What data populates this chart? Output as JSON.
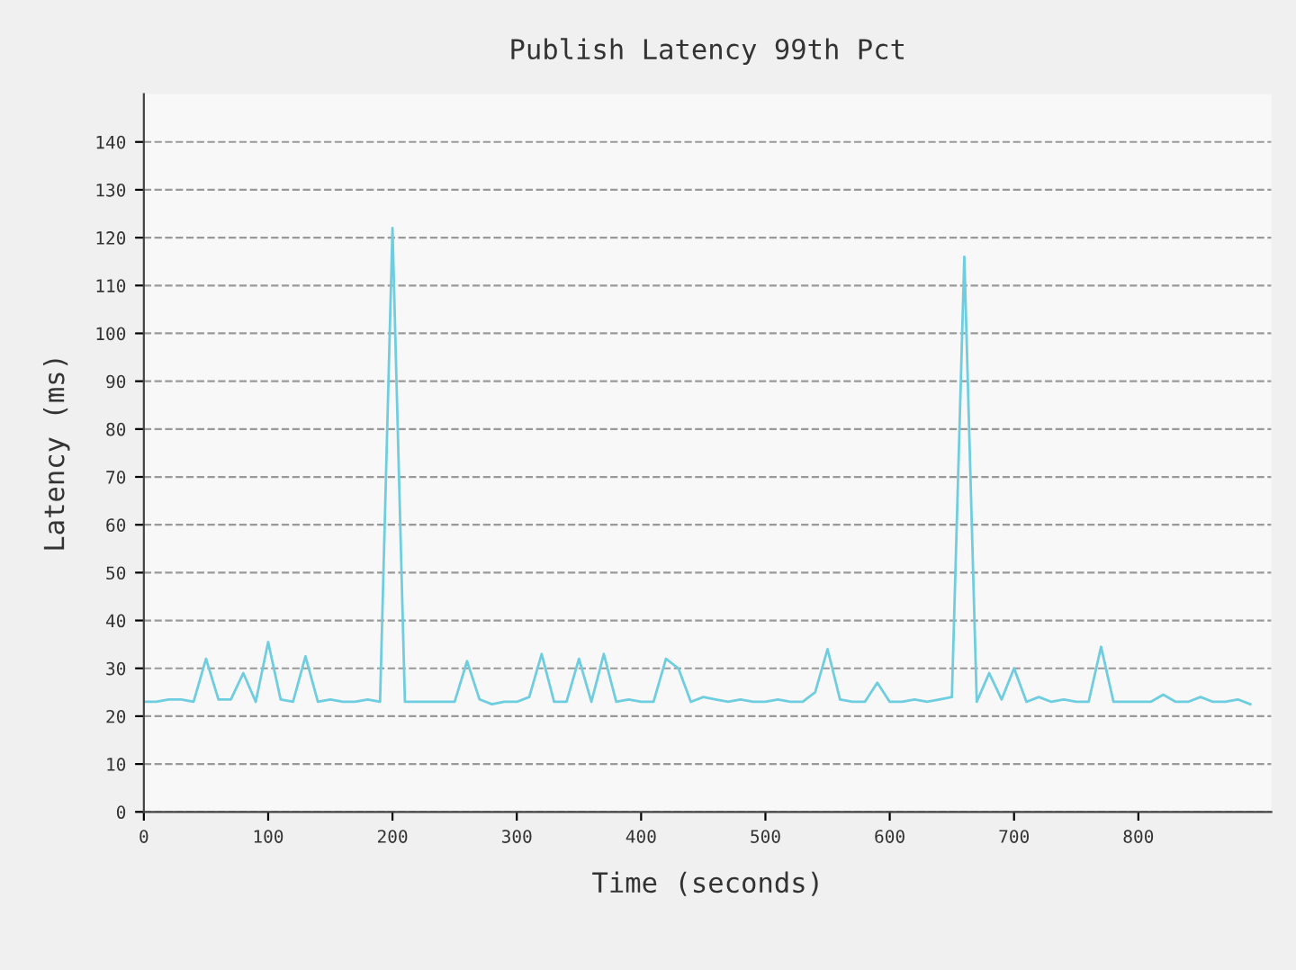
{
  "chart_data": {
    "type": "line",
    "title": "Publish Latency 99th Pct",
    "xlabel": "Time (seconds)",
    "ylabel": "Latency (ms)",
    "x": [
      0,
      10,
      20,
      30,
      40,
      50,
      60,
      70,
      80,
      90,
      100,
      110,
      120,
      130,
      140,
      150,
      160,
      170,
      180,
      190,
      200,
      210,
      220,
      230,
      240,
      250,
      260,
      270,
      280,
      290,
      300,
      310,
      320,
      330,
      340,
      350,
      360,
      370,
      380,
      390,
      400,
      410,
      420,
      430,
      440,
      450,
      460,
      470,
      480,
      490,
      500,
      510,
      520,
      530,
      540,
      550,
      560,
      570,
      580,
      590,
      600,
      610,
      620,
      630,
      640,
      650,
      660,
      670,
      680,
      690,
      700,
      710,
      720,
      730,
      740,
      750,
      760,
      770,
      780,
      790,
      800,
      810,
      820,
      830,
      840,
      850,
      860,
      870,
      880,
      890
    ],
    "series": [
      {
        "color": "#6fcde0",
        "values": [
          23,
          23,
          23.5,
          23.5,
          23,
          32,
          23.5,
          23.5,
          29,
          23,
          35.5,
          23.5,
          23,
          32.5,
          23,
          23.5,
          23,
          23,
          23.5,
          23,
          122,
          23,
          23,
          23,
          23,
          23,
          31.5,
          23.5,
          22.5,
          23,
          23,
          24,
          33,
          23,
          23,
          32,
          23,
          33,
          23,
          23.5,
          23,
          23,
          32,
          30,
          23,
          24,
          23.5,
          23,
          23.5,
          23,
          23,
          23.5,
          23,
          23,
          25,
          34,
          23.5,
          23,
          23,
          27,
          23,
          23,
          23.5,
          23,
          23.5,
          24,
          116,
          23,
          29,
          23.5,
          30,
          23,
          24,
          23,
          23.5,
          23,
          23,
          34.5,
          23,
          23,
          23,
          23,
          24.5,
          23,
          23,
          24,
          23,
          23,
          23.5,
          22.5
        ]
      }
    ],
    "xlim": [
      0,
      907
    ],
    "xticks": [
      0,
      100,
      200,
      300,
      400,
      500,
      600,
      700,
      800
    ],
    "ylim": [
      0,
      150
    ],
    "yticks": [
      0,
      10,
      20,
      30,
      40,
      50,
      60,
      70,
      80,
      90,
      100,
      110,
      120,
      130,
      140
    ],
    "grid": "y",
    "marker": "none",
    "line_style": "solid"
  }
}
